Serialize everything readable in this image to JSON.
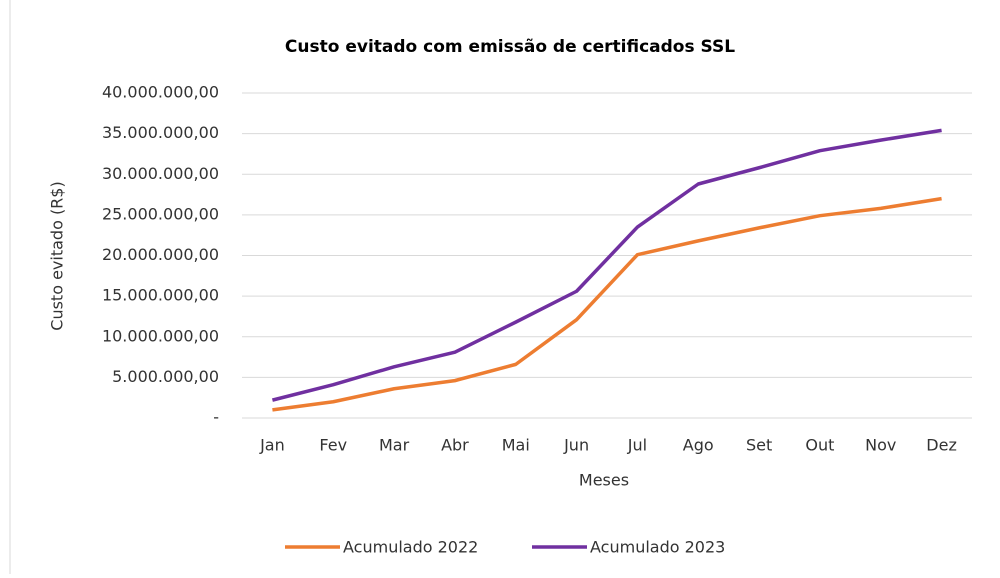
{
  "chart_data": {
    "type": "line",
    "title": "Custo evitado com emissão de certificados SSL",
    "x_label": "Meses",
    "y_label": "Custo evitado (R$)",
    "categories": [
      "Jan",
      "Fev",
      "Mar",
      "Abr",
      "Mai",
      "Jun",
      "Jul",
      "Ago",
      "Set",
      "Out",
      "Nov",
      "Dez"
    ],
    "series": [
      {
        "name": "Acumulado 2022",
        "color": "#ed7d31",
        "values": [
          1000000,
          2000000,
          3600000,
          4600000,
          6600000,
          12100000,
          20100000,
          21800000,
          23400000,
          24900000,
          25800000,
          27000000
        ]
      },
      {
        "name": "Acumulado 2023",
        "color": "#7030a0",
        "values": [
          2200000,
          4100000,
          6300000,
          8100000,
          11800000,
          15600000,
          23500000,
          28800000,
          30800000,
          32900000,
          34200000,
          35400000
        ]
      }
    ],
    "ylim": [
      0,
      40000000
    ],
    "yticks": [
      {
        "value": 0,
        "label": "-"
      },
      {
        "value": 5000000,
        "label": "5.000.000,00"
      },
      {
        "value": 10000000,
        "label": "10.000.000,00"
      },
      {
        "value": 15000000,
        "label": "15.000.000,00"
      },
      {
        "value": 20000000,
        "label": "20.000.000,00"
      },
      {
        "value": 25000000,
        "label": "25.000.000,00"
      },
      {
        "value": 30000000,
        "label": "30.000.000,00"
      },
      {
        "value": 35000000,
        "label": "35.000.000,00"
      },
      {
        "value": 40000000,
        "label": "40.000.000,00"
      }
    ],
    "grid": true,
    "legend": "bottom"
  }
}
